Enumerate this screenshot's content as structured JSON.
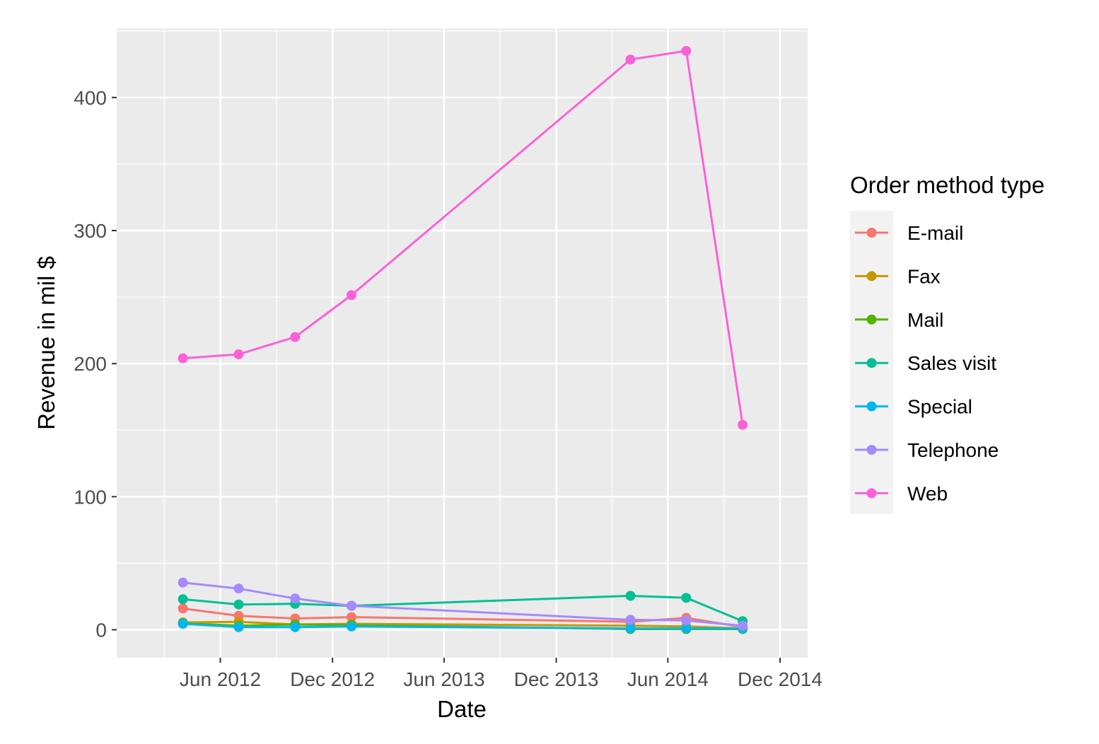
{
  "chart_data": {
    "type": "line",
    "title": "",
    "xlabel": "Date",
    "ylabel": "Revenue in mil $",
    "x_ticks": [
      "Jun 2012",
      "Dec 2012",
      "Jun 2013",
      "Dec 2013",
      "Jun 2014",
      "Dec 2014"
    ],
    "y_ticks": [
      "0",
      "100",
      "200",
      "300",
      "400"
    ],
    "x": [
      "2012-04-01",
      "2012-07-01",
      "2012-10-01",
      "2013-01-01",
      "2014-04-01",
      "2014-07-01",
      "2014-10-01"
    ],
    "xlim": [
      "2011-12-15",
      "2015-01-15"
    ],
    "ylim": [
      -21,
      452
    ],
    "grid": true,
    "legend": {
      "title": "Order method type",
      "position": "right"
    },
    "series": [
      {
        "name": "E-mail",
        "color": "#F8766D",
        "values": [
          16,
          10.5,
          8.5,
          9.5,
          6,
          9,
          2
        ]
      },
      {
        "name": "Fax",
        "color": "#C49A00",
        "values": [
          5.5,
          6,
          4,
          4.5,
          3,
          2.5,
          1
        ]
      },
      {
        "name": "Mail",
        "color": "#53B400",
        "values": [
          5,
          3,
          4,
          3.5,
          0.5,
          0.5,
          0.5
        ]
      },
      {
        "name": "Sales visit",
        "color": "#00C094",
        "values": [
          23,
          19,
          19.5,
          18,
          25.5,
          24,
          6.5
        ]
      },
      {
        "name": "Special",
        "color": "#00B6EB",
        "values": [
          4.5,
          2,
          2,
          2.5,
          1,
          1,
          1
        ]
      },
      {
        "name": "Telephone",
        "color": "#A58AFF",
        "values": [
          35.5,
          31,
          23.5,
          18,
          7.5,
          7,
          3
        ]
      },
      {
        "name": "Web",
        "color": "#FB61D7",
        "values": [
          204,
          207,
          220,
          251.5,
          428.5,
          435,
          154
        ]
      }
    ]
  }
}
